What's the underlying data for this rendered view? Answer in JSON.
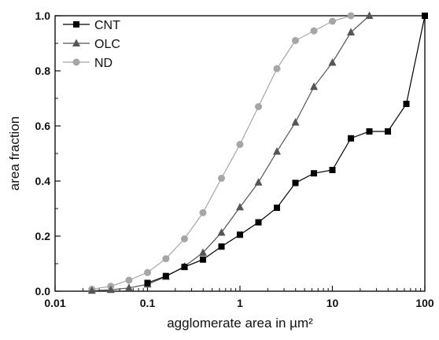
{
  "chart_data": {
    "type": "line",
    "xscale": "log",
    "xlim": [
      0.01,
      100
    ],
    "ylim": [
      0.0,
      1.0
    ],
    "xlabel": "agglomerate area in µm²",
    "ylabel": "area fraction",
    "x_ticks": [
      "0.01",
      "0.1",
      "1",
      "10",
      "100"
    ],
    "y_ticks": [
      "0.0",
      "0.2",
      "0.4",
      "0.6",
      "0.8",
      "1.0"
    ],
    "legend_position": "top-left",
    "series": [
      {
        "name": "CNT",
        "marker": "square",
        "color": "#000000",
        "x": [
          0.1,
          0.158,
          0.251,
          0.398,
          0.631,
          1.0,
          1.585,
          2.512,
          3.981,
          6.31,
          10.0,
          15.85,
          25.12,
          39.81,
          63.1,
          100.0
        ],
        "y": [
          0.03,
          0.055,
          0.088,
          0.115,
          0.162,
          0.205,
          0.25,
          0.303,
          0.393,
          0.428,
          0.44,
          0.555,
          0.58,
          0.58,
          0.68,
          1.0
        ]
      },
      {
        "name": "OLC",
        "marker": "triangle",
        "color": "#555555",
        "x": [
          0.025,
          0.04,
          0.063,
          0.1,
          0.158,
          0.251,
          0.398,
          0.631,
          1.0,
          1.585,
          2.512,
          3.981,
          6.31,
          10.0,
          15.85,
          25.12
        ],
        "y": [
          0.002,
          0.005,
          0.012,
          0.025,
          0.053,
          0.09,
          0.14,
          0.213,
          0.305,
          0.395,
          0.507,
          0.613,
          0.742,
          0.83,
          0.94,
          1.0
        ]
      },
      {
        "name": "ND",
        "marker": "circle",
        "color": "#a6a6a6",
        "x": [
          0.025,
          0.04,
          0.063,
          0.1,
          0.158,
          0.251,
          0.398,
          0.631,
          1.0,
          1.585,
          2.512,
          3.981,
          6.31,
          10.0,
          15.85
        ],
        "y": [
          0.007,
          0.018,
          0.04,
          0.068,
          0.118,
          0.19,
          0.285,
          0.41,
          0.533,
          0.67,
          0.808,
          0.91,
          0.945,
          0.98,
          1.0
        ]
      }
    ]
  }
}
